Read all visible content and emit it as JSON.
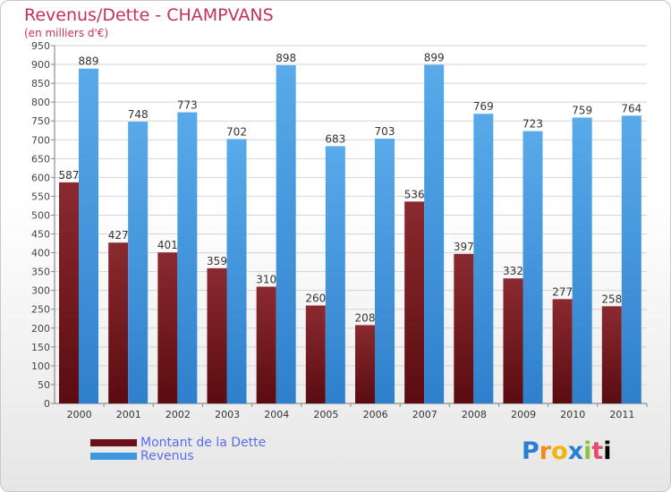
{
  "chart_data": {
    "type": "bar",
    "title": "Revenus/Dette - CHAMPVANS",
    "subtitle": "(en milliers d'€)",
    "categories": [
      "2000",
      "2001",
      "2002",
      "2003",
      "2004",
      "2005",
      "2006",
      "2007",
      "2008",
      "2009",
      "2010",
      "2011"
    ],
    "series": [
      {
        "name": "Montant de la Dette",
        "color": "#7a1e24",
        "values": [
          587,
          427,
          401,
          359,
          310,
          260,
          208,
          536,
          397,
          332,
          277,
          258
        ]
      },
      {
        "name": "Revenus",
        "color": "#3f97e0",
        "values": [
          889,
          748,
          773,
          702,
          898,
          683,
          703,
          899,
          769,
          723,
          759,
          764
        ]
      }
    ],
    "ylim": [
      0,
      950
    ],
    "yticks": [
      0,
      50,
      100,
      150,
      200,
      250,
      300,
      350,
      400,
      450,
      500,
      550,
      600,
      650,
      700,
      750,
      800,
      850,
      900,
      950
    ],
    "grid": true,
    "legend_position": "bottom-left"
  },
  "legend": {
    "debt_label": "Montant de la Dette",
    "revenue_label": "Revenus",
    "debt_color": "#6a1016",
    "revenue_color": "#3f97e0"
  },
  "brand": {
    "letters": [
      "P",
      "r",
      "o",
      "x",
      "i",
      "t",
      "i"
    ]
  }
}
